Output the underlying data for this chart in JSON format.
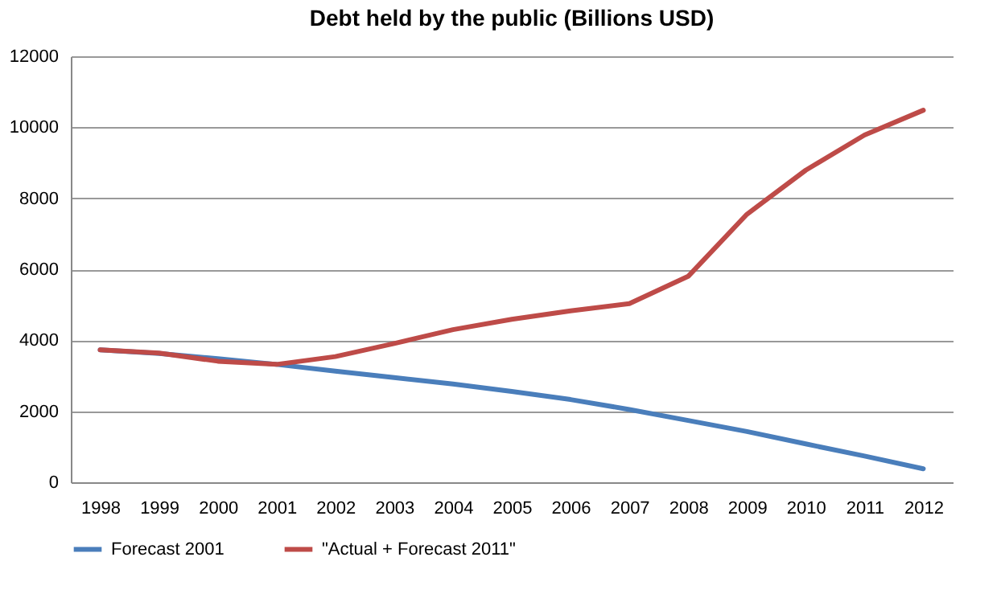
{
  "chart_data": {
    "type": "line",
    "title": "Debt held by the public (Billions USD)",
    "categories": [
      "1998",
      "1999",
      "2000",
      "2001",
      "2002",
      "2003",
      "2004",
      "2005",
      "2006",
      "2007",
      "2008",
      "2009",
      "2010",
      "2011",
      "2012"
    ],
    "series": [
      {
        "name": "Forecast 2001",
        "color": "#4a7ebb",
        "values": [
          3730,
          3630,
          3480,
          3320,
          3130,
          2950,
          2770,
          2560,
          2330,
          2050,
          1740,
          1430,
          1080,
          740,
          380
        ]
      },
      {
        "name": "\"Actual + Forecast 2011\"",
        "color": "#be4b48",
        "values": [
          3730,
          3640,
          3410,
          3320,
          3540,
          3910,
          4300,
          4590,
          4830,
          5030,
          5800,
          7550,
          8790,
          9780,
          10480
        ]
      }
    ],
    "ylim": [
      0,
      12000
    ],
    "yticks": [
      0,
      2000,
      4000,
      6000,
      8000,
      10000,
      12000
    ],
    "grid": "y",
    "legend": "bottom",
    "marker": "none",
    "line_style": "solid"
  }
}
